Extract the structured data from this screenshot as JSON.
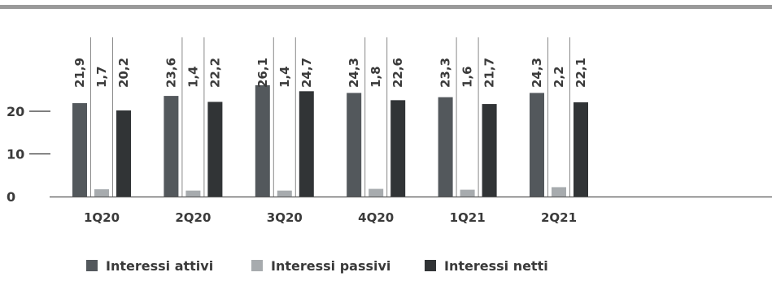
{
  "chart_data": {
    "type": "bar",
    "categories": [
      "1Q20",
      "2Q20",
      "3Q20",
      "4Q20",
      "1Q21",
      "2Q21"
    ],
    "series": [
      {
        "name": "Interessi attivi",
        "color": "#53585c",
        "values": [
          21.9,
          23.6,
          26.1,
          24.3,
          23.3,
          24.3
        ],
        "labels": [
          "21,9",
          "23,6",
          "26,1",
          "24,3",
          "23,3",
          "24,3"
        ]
      },
      {
        "name": "Interessi passivi",
        "color": "#a7abae",
        "values": [
          1.7,
          1.4,
          1.4,
          1.8,
          1.6,
          2.2
        ],
        "labels": [
          "1,7",
          "1,4",
          "1,4",
          "1,8",
          "1,6",
          "2,2"
        ]
      },
      {
        "name": "Interessi netti",
        "color": "#313436",
        "values": [
          20.2,
          22.2,
          24.7,
          22.6,
          21.7,
          22.1
        ],
        "labels": [
          "20,2",
          "22,2",
          "24,7",
          "22,6",
          "21,7",
          "22,1"
        ]
      }
    ],
    "yticks": [
      0,
      10,
      20
    ],
    "ylim": [
      0,
      28
    ],
    "grid": false,
    "legend_position": "bottom-left",
    "title": "",
    "xlabel": "",
    "ylabel": ""
  }
}
